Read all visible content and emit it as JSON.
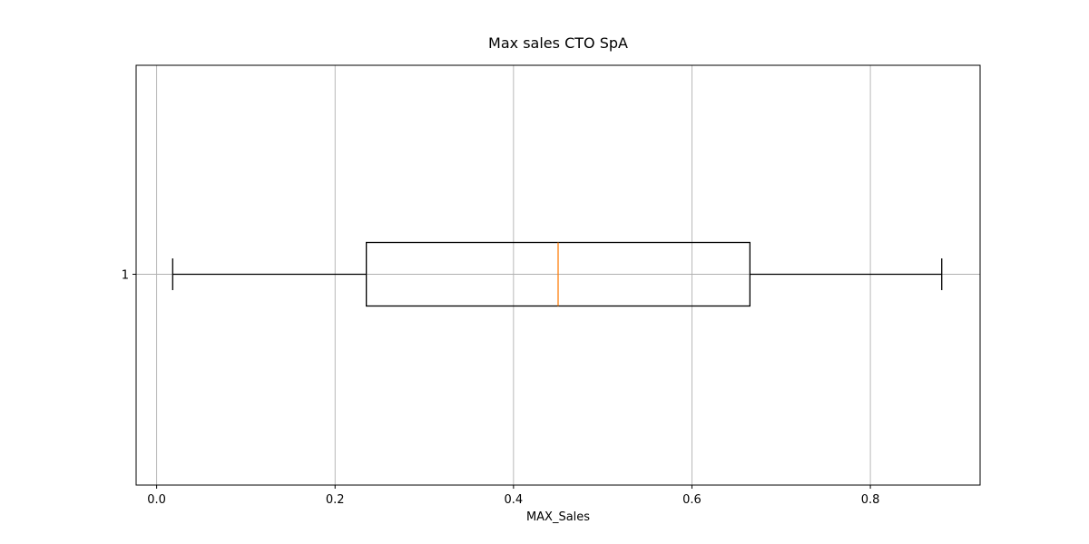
{
  "chart_data": {
    "type": "boxplot",
    "orientation": "horizontal",
    "title": "Max sales CTO SpA",
    "xlabel": "MAX_Sales",
    "ylabel": "",
    "xlim": [
      -0.023,
      0.923
    ],
    "x_ticks": [
      0.0,
      0.2,
      0.4,
      0.6,
      0.8
    ],
    "x_tick_labels": [
      "0.0",
      "0.2",
      "0.4",
      "0.6",
      "0.8"
    ],
    "y_tick_labels": [
      "1"
    ],
    "grid": true,
    "boxes": [
      {
        "label": "1",
        "whisker_low": 0.018,
        "q1": 0.235,
        "median": 0.45,
        "q3": 0.665,
        "whisker_high": 0.88
      }
    ],
    "colors": {
      "box": "#000000",
      "median": "#ff7f0e",
      "grid": "#b0b0b0",
      "frame": "#000000"
    }
  }
}
